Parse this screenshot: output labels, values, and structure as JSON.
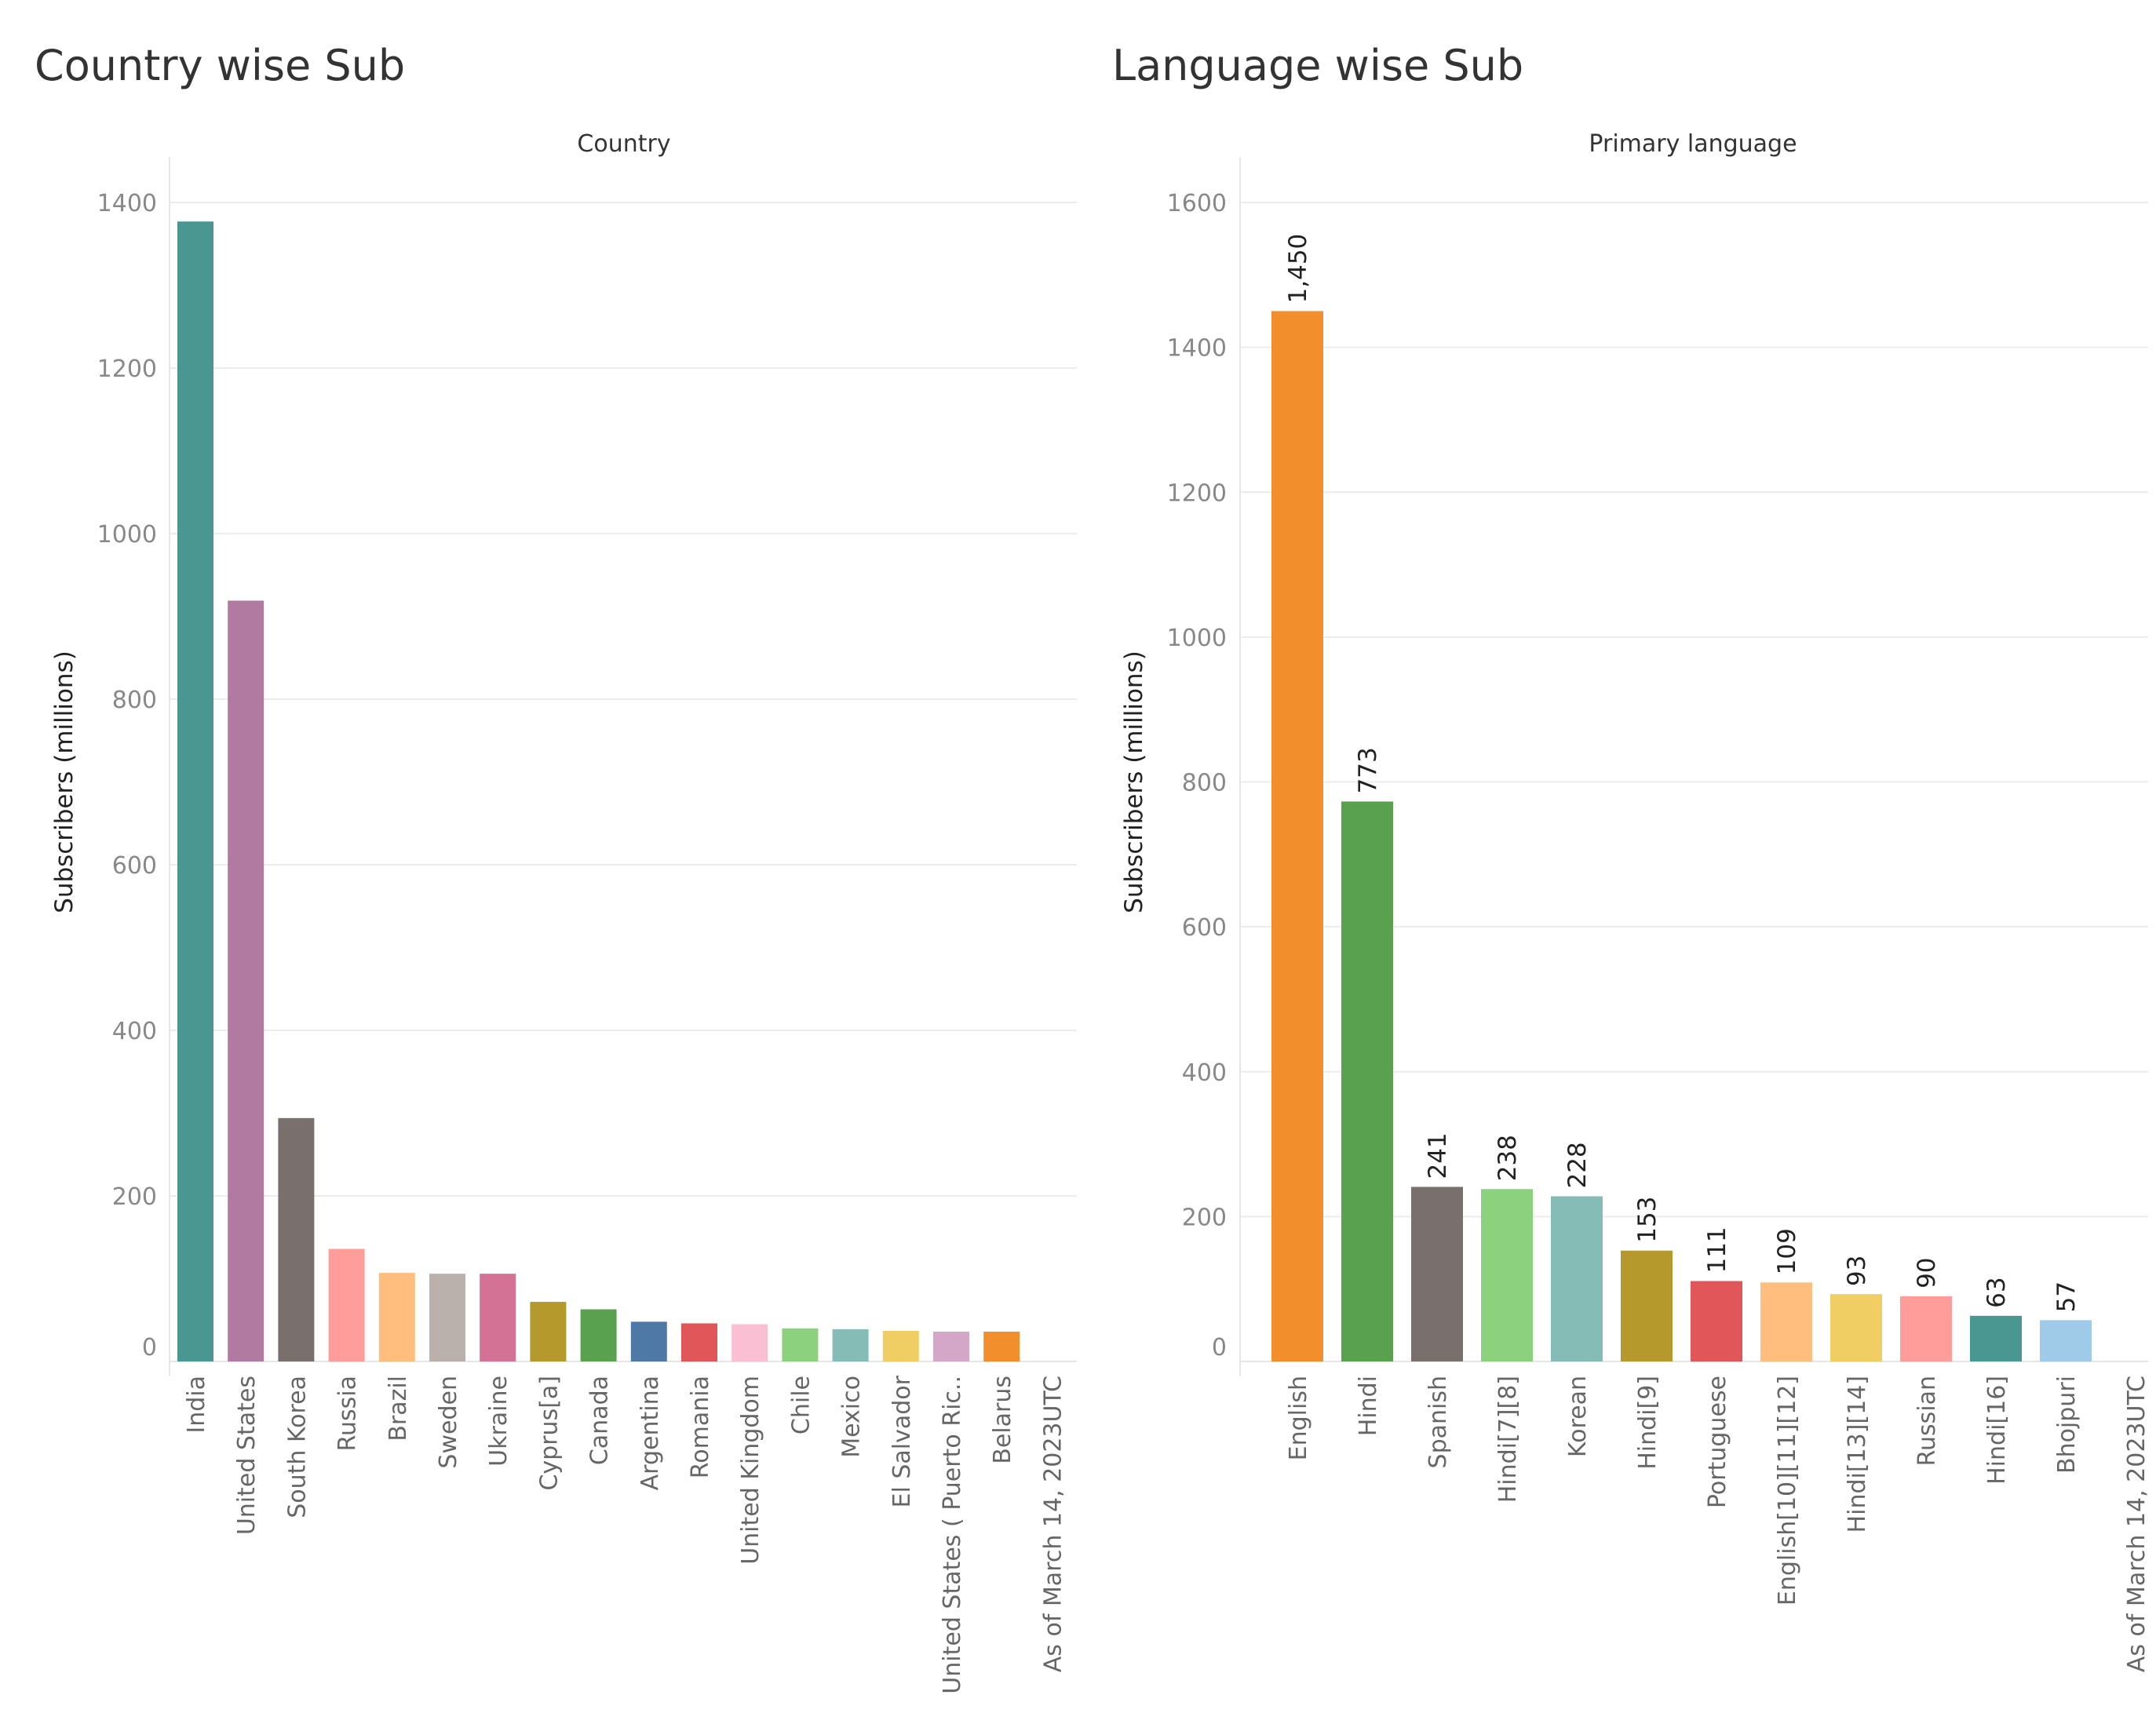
{
  "chart_data": [
    {
      "type": "bar",
      "title": "Country wise Sub",
      "column_header": "Country",
      "ylabel": "Subscribers (millions)",
      "ylim": [
        0,
        1400
      ],
      "yticks": [
        0,
        200,
        400,
        600,
        800,
        1000,
        1200,
        1400
      ],
      "categories": [
        "India",
        "United States",
        "South Korea",
        "Russia",
        "Brazil",
        "Sweden",
        "Ukraine",
        "Cyprus[a]",
        "Canada",
        "Argentina",
        "Romania",
        "United Kingdom",
        "Chile",
        "Mexico",
        "El Salvador",
        "United States ( Puerto Ric..",
        "Belarus",
        "As of March 14, 2023UTC"
      ],
      "values": [
        1377,
        919,
        294,
        136,
        107,
        106,
        106,
        72,
        63,
        48,
        46,
        45,
        40,
        39,
        37,
        36,
        36,
        0
      ],
      "colors": [
        "#4a9791",
        "#b07aa1",
        "#79706e",
        "#ff9d9a",
        "#ffbe7d",
        "#bab0ac",
        "#d37295",
        "#b6992d",
        "#59a14f",
        "#4e79a7",
        "#e15759",
        "#fabfd2",
        "#8cd17d",
        "#86bcb6",
        "#f1ce63",
        "#d4a6c8",
        "#f28e2b",
        "#ffffff"
      ],
      "grid": true,
      "legend": "none"
    },
    {
      "type": "bar",
      "title": "Language wise Sub",
      "column_header": "Primary language",
      "ylabel": "Subscribers (millions)",
      "ylim": [
        0,
        1600
      ],
      "yticks": [
        0,
        200,
        400,
        600,
        800,
        1000,
        1200,
        1400,
        1600
      ],
      "categories": [
        "English",
        "Hindi",
        "Spanish",
        "Hindi[7][8]",
        "Korean",
        "Hindi[9]",
        "Portuguese",
        "English[10][11][12]",
        "Hindi[13][14]",
        "Russian",
        "Hindi[16]",
        "Bhojpuri",
        "As of March 14, 2023UTC"
      ],
      "values": [
        1450,
        773,
        241,
        238,
        228,
        153,
        111,
        109,
        93,
        90,
        63,
        57,
        0
      ],
      "data_labels": [
        "1,450",
        "773",
        "241",
        "238",
        "228",
        "153",
        "111",
        "109",
        "93",
        "90",
        "63",
        "57",
        ""
      ],
      "colors": [
        "#f28e2b",
        "#59a14f",
        "#79706e",
        "#8cd17d",
        "#86bcb6",
        "#b6992d",
        "#e15759",
        "#ffbe7d",
        "#f1ce63",
        "#ff9d9a",
        "#4a9791",
        "#a0cbe8",
        "#ffffff"
      ],
      "grid": true,
      "legend": "none"
    }
  ]
}
